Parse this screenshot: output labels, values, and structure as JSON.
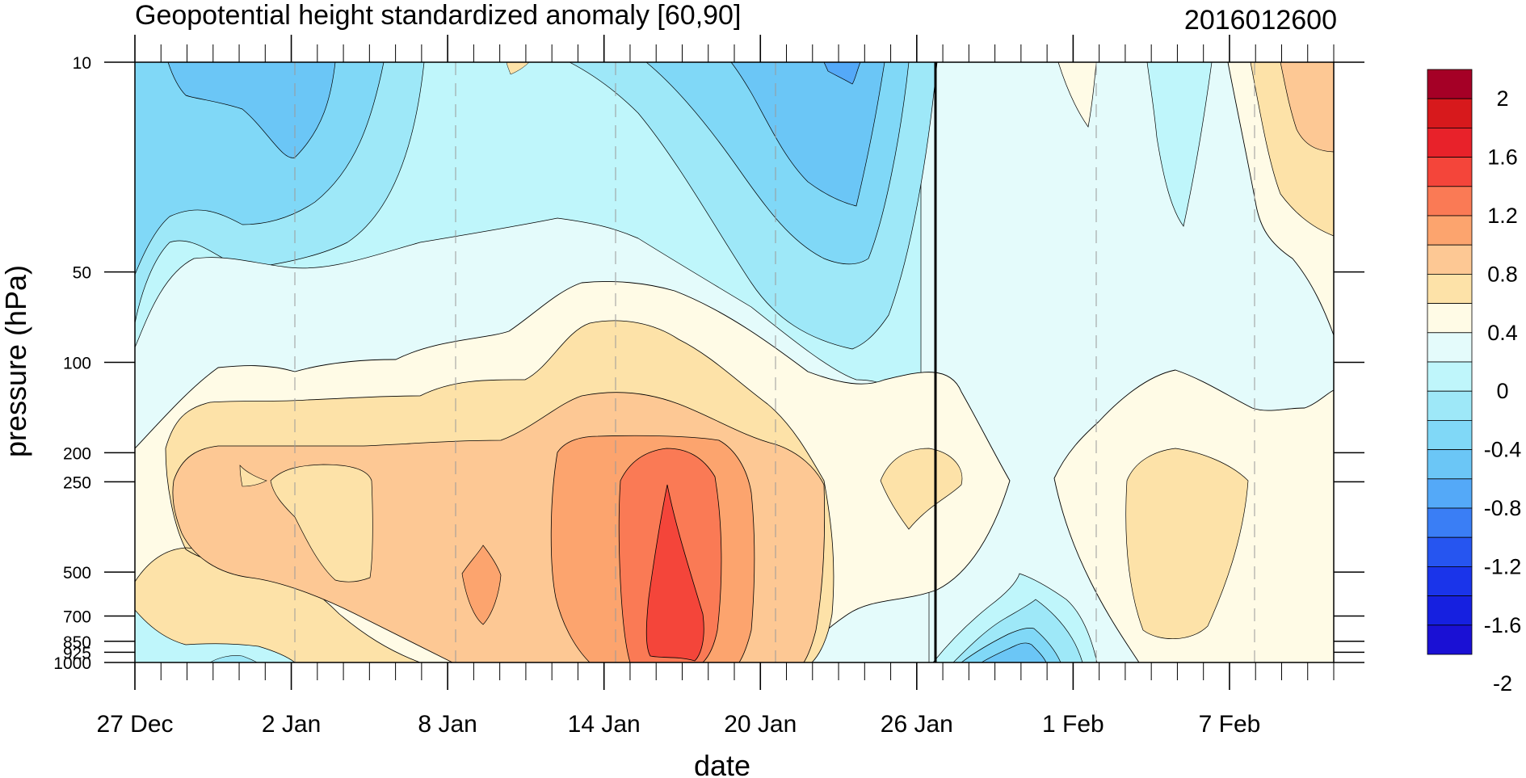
{
  "chart_data": {
    "type": "heatmap",
    "title": "Geopotential height standardized anomaly [60,90]",
    "right_title": "2016012600",
    "xlabel": "date",
    "ylabel": "pressure (hPa)",
    "x_ticks": [
      "27 Dec",
      "2 Jan",
      "8 Jan",
      "14 Jan",
      "20 Jan",
      "26 Jan",
      "1 Feb",
      "7 Feb"
    ],
    "y_ticks": [
      10,
      50,
      100,
      200,
      250,
      500,
      700,
      850,
      925,
      1000
    ],
    "y_scale": "log",
    "y_range": [
      1000,
      10
    ],
    "x_range": [
      "27 Dec",
      "11 Feb"
    ],
    "marker_line_date": "26 Jan",
    "grid": "dashed vertical lines at date ticks",
    "colorbar": {
      "labels": [
        "2",
        "1.6",
        "1.2",
        "0.8",
        "0.4",
        "0",
        "-0.4",
        "-0.8",
        "-1.2",
        "-1.6",
        "-2"
      ],
      "colors": [
        "#a50026",
        "#d7191c",
        "#e8222a",
        "#f4453a",
        "#fa7a55",
        "#fca46e",
        "#fdc894",
        "#fde2a8",
        "#fffbe6",
        "#e4fbfb",
        "#bff6fb",
        "#9ee8f8",
        "#80d8f7",
        "#6bc6f6",
        "#54a9f8",
        "#3a7ef5",
        "#2655f0",
        "#1a34ea",
        "#1620e0",
        "#1a10d4"
      ]
    },
    "features": [
      {
        "name": "main positive anomaly",
        "level": 1.2,
        "location": "~16 Jan, 300-1000 hPa"
      },
      {
        "name": "negative anomaly upper",
        "level": -0.8,
        "location": "~21-23 Jan, 10-30 hPa"
      }
    ]
  },
  "icons": {
    "colorbar_style": "stacked-box-legend"
  }
}
